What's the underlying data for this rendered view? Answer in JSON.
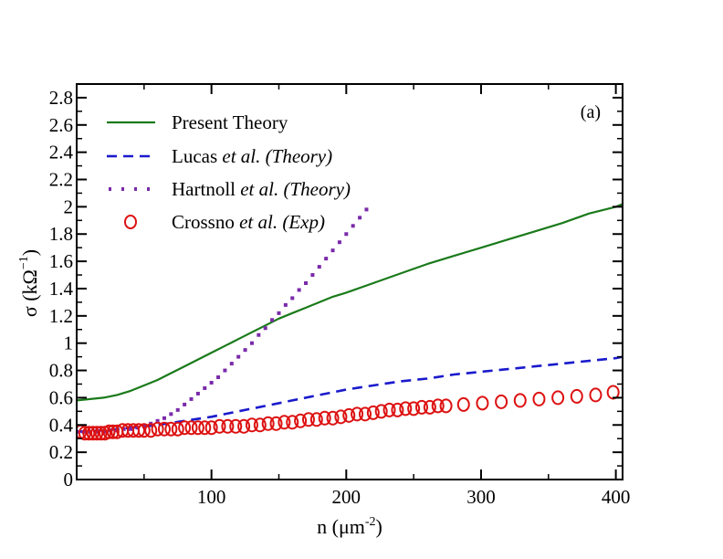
{
  "chart_data": {
    "type": "line",
    "panel_label": "(a)",
    "xlabel": {
      "base": "n (",
      "mu": "μ",
      "unit": "m",
      "sup": "-2",
      "close": ")"
    },
    "ylabel": {
      "sigma": "σ",
      "open": " (k",
      "omega": "Ω",
      "sup": "−1",
      "close": ")"
    },
    "xlim": [
      0,
      405
    ],
    "ylim": [
      0,
      2.9
    ],
    "xticks": [
      100,
      200,
      300,
      400
    ],
    "yticks": [
      0,
      0.2,
      0.4,
      0.6,
      0.8,
      1,
      1.2,
      1.4,
      1.6,
      1.8,
      2,
      2.2,
      2.4,
      2.6,
      2.8
    ],
    "ytick_labels": [
      "0",
      "0.2",
      "0.4",
      "0.6",
      "0.8",
      "1",
      "1.2",
      "1.4",
      "1.6",
      "1.8",
      "2",
      "2.2",
      "2.4",
      "2.6",
      "2.8"
    ],
    "grid": false,
    "legend_position": "top-left",
    "series": [
      {
        "name_plain": "Present Theory",
        "name_italic": "",
        "style": "solid",
        "color": "#1a7a1a",
        "x": [
          0,
          10,
          20,
          30,
          40,
          50,
          60,
          70,
          80,
          90,
          100,
          110,
          120,
          130,
          140,
          150,
          160,
          170,
          180,
          190,
          200,
          220,
          240,
          260,
          280,
          300,
          320,
          340,
          360,
          380,
          400,
          405
        ],
        "y": [
          0.58,
          0.59,
          0.6,
          0.62,
          0.65,
          0.69,
          0.73,
          0.78,
          0.83,
          0.88,
          0.93,
          0.98,
          1.03,
          1.08,
          1.13,
          1.18,
          1.22,
          1.26,
          1.3,
          1.34,
          1.37,
          1.44,
          1.51,
          1.58,
          1.64,
          1.7,
          1.76,
          1.82,
          1.88,
          1.95,
          2.0,
          2.02
        ]
      },
      {
        "name_plain": "Lucas ",
        "name_italic": "et al. (Theory)",
        "style": "dashed",
        "color": "#1a1acc",
        "x": [
          0,
          20,
          40,
          60,
          80,
          100,
          120,
          140,
          160,
          180,
          200,
          220,
          240,
          260,
          280,
          300,
          320,
          340,
          360,
          380,
          400,
          405
        ],
        "y": [
          0.35,
          0.36,
          0.38,
          0.4,
          0.43,
          0.46,
          0.5,
          0.54,
          0.58,
          0.62,
          0.66,
          0.69,
          0.72,
          0.74,
          0.77,
          0.79,
          0.81,
          0.83,
          0.85,
          0.87,
          0.89,
          0.9
        ]
      },
      {
        "name_plain": "Hartnoll ",
        "name_italic": "et al. (Theory)",
        "style": "dotted",
        "color": "#7a2aaa",
        "x": [
          0,
          5,
          10,
          15,
          20,
          25,
          30,
          35,
          40,
          45,
          50,
          55,
          60,
          65,
          70,
          75,
          80,
          85,
          90,
          95,
          100,
          105,
          110,
          115,
          120,
          125,
          130,
          135,
          140,
          145,
          150,
          155,
          160,
          165,
          170,
          175,
          180,
          185,
          190,
          195,
          200,
          205,
          210,
          215
        ],
        "y": [
          0.35,
          0.35,
          0.35,
          0.35,
          0.35,
          0.36,
          0.36,
          0.37,
          0.37,
          0.38,
          0.39,
          0.41,
          0.43,
          0.45,
          0.48,
          0.51,
          0.55,
          0.59,
          0.63,
          0.67,
          0.71,
          0.75,
          0.8,
          0.85,
          0.9,
          0.95,
          1.0,
          1.06,
          1.11,
          1.17,
          1.22,
          1.28,
          1.33,
          1.39,
          1.44,
          1.5,
          1.56,
          1.62,
          1.68,
          1.74,
          1.8,
          1.86,
          1.92,
          1.98
        ]
      },
      {
        "name_plain": "Crossno ",
        "name_italic": "et al. (Exp)",
        "style": "circles",
        "color": "#dd1111",
        "x": [
          3,
          6,
          9,
          12,
          15,
          18,
          21,
          24,
          27,
          30,
          34,
          38,
          42,
          46,
          50,
          55,
          60,
          65,
          70,
          75,
          80,
          85,
          90,
          95,
          100,
          106,
          112,
          118,
          124,
          130,
          136,
          142,
          148,
          154,
          160,
          166,
          172,
          178,
          184,
          190,
          196,
          202,
          208,
          214,
          220,
          226,
          232,
          238,
          244,
          250,
          256,
          262,
          268,
          274,
          287,
          301,
          315,
          329,
          343,
          357,
          371,
          385,
          398
        ],
        "y": [
          0.35,
          0.34,
          0.34,
          0.34,
          0.34,
          0.34,
          0.34,
          0.35,
          0.35,
          0.35,
          0.36,
          0.36,
          0.36,
          0.36,
          0.36,
          0.36,
          0.37,
          0.37,
          0.37,
          0.37,
          0.38,
          0.38,
          0.38,
          0.38,
          0.38,
          0.39,
          0.39,
          0.39,
          0.39,
          0.4,
          0.4,
          0.41,
          0.41,
          0.42,
          0.42,
          0.43,
          0.44,
          0.44,
          0.45,
          0.45,
          0.46,
          0.47,
          0.48,
          0.48,
          0.49,
          0.5,
          0.51,
          0.51,
          0.52,
          0.52,
          0.53,
          0.53,
          0.54,
          0.54,
          0.55,
          0.56,
          0.57,
          0.58,
          0.59,
          0.6,
          0.61,
          0.62,
          0.64
        ]
      }
    ]
  }
}
